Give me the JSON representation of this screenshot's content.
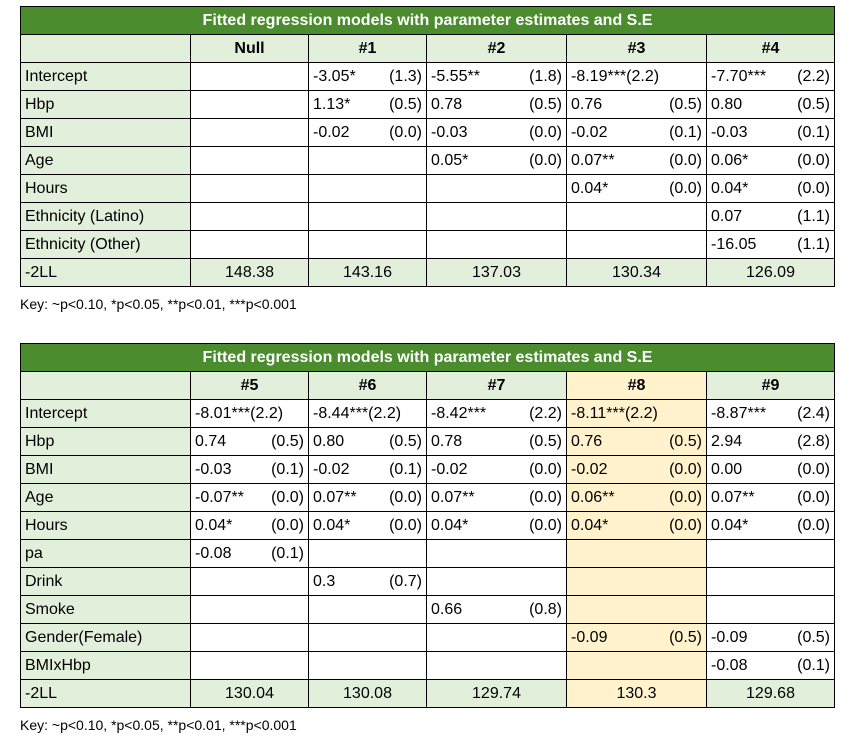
{
  "table1": {
    "title": "Fitted regression models with parameter estimates and S.E",
    "headers": [
      "",
      "Null",
      "#1",
      "#2",
      "#3",
      "#4"
    ],
    "rows": [
      {
        "label": "Intercept",
        "cells": [
          [
            "",
            ""
          ],
          [
            "-3.05*",
            "(1.3)"
          ],
          [
            "-5.55**",
            "(1.8)"
          ],
          [
            "-8.19***(2.2)",
            ""
          ],
          [
            "-7.70***",
            "(2.2)"
          ]
        ]
      },
      {
        "label": "Hbp",
        "cells": [
          [
            "",
            ""
          ],
          [
            "1.13*",
            "(0.5)"
          ],
          [
            "0.78",
            "(0.5)"
          ],
          [
            "0.76",
            "(0.5)"
          ],
          [
            "0.80",
            "(0.5)"
          ]
        ]
      },
      {
        "label": "BMI",
        "cells": [
          [
            "",
            ""
          ],
          [
            "-0.02",
            "(0.0)"
          ],
          [
            "-0.03",
            "(0.0)"
          ],
          [
            "-0.02",
            "(0.1)"
          ],
          [
            "-0.03",
            "(0.1)"
          ]
        ]
      },
      {
        "label": "Age",
        "cells": [
          [
            "",
            ""
          ],
          [
            "",
            ""
          ],
          [
            "0.05*",
            "(0.0)"
          ],
          [
            "0.07**",
            "(0.0)"
          ],
          [
            "0.06*",
            "(0.0)"
          ]
        ]
      },
      {
        "label": "Hours",
        "cells": [
          [
            "",
            ""
          ],
          [
            "",
            ""
          ],
          [
            "",
            ""
          ],
          [
            "0.04*",
            "(0.0)"
          ],
          [
            "0.04*",
            "(0.0)"
          ]
        ]
      },
      {
        "label": "Ethnicity (Latino)",
        "cells": [
          [
            "",
            ""
          ],
          [
            "",
            ""
          ],
          [
            "",
            ""
          ],
          [
            "",
            ""
          ],
          [
            "0.07",
            "(1.1)"
          ]
        ]
      },
      {
        "label": "Ethnicity (Other)",
        "cells": [
          [
            "",
            ""
          ],
          [
            "",
            ""
          ],
          [
            "",
            ""
          ],
          [
            "",
            ""
          ],
          [
            "-16.05",
            "(1.1)"
          ]
        ]
      }
    ],
    "total": {
      "label": "-2LL",
      "values": [
        "148.38",
        "143.16",
        "137.03",
        "130.34",
        "126.09"
      ]
    },
    "key": "Key: ~p<0.10, *p<0.05, **p<0.01, ***p<0.001"
  },
  "table2": {
    "title": "Fitted regression models with parameter estimates and S.E",
    "headers": [
      "",
      "#5",
      "#6",
      "#7",
      "#8",
      "#9"
    ],
    "highlight_color": "#fff2cc",
    "rows": [
      {
        "label": "Intercept",
        "cells": [
          [
            "-8.01***(2.2)",
            ""
          ],
          [
            "-8.44***(2.2)",
            ""
          ],
          [
            "-8.42***",
            "(2.2)"
          ],
          [
            "-8.11***(2.2)",
            ""
          ],
          [
            "-8.87***",
            "(2.4)"
          ]
        ]
      },
      {
        "label": "Hbp",
        "cells": [
          [
            "0.74",
            "(0.5)"
          ],
          [
            "0.80",
            "(0.5)"
          ],
          [
            "0.78",
            "(0.5)"
          ],
          [
            "0.76",
            "(0.5)"
          ],
          [
            "2.94",
            "(2.8)"
          ]
        ]
      },
      {
        "label": "BMI",
        "cells": [
          [
            "-0.03",
            "(0.1)"
          ],
          [
            "-0.02",
            "(0.1)"
          ],
          [
            "-0.02",
            "(0.0)"
          ],
          [
            "-0.02",
            "(0.0)"
          ],
          [
            "0.00",
            "(0.0)"
          ]
        ]
      },
      {
        "label": "Age",
        "cells": [
          [
            "-0.07**",
            "(0.0)"
          ],
          [
            "0.07**",
            "(0.0)"
          ],
          [
            "0.07**",
            "(0.0)"
          ],
          [
            "0.06**",
            "(0.0)"
          ],
          [
            "0.07**",
            "(0.0)"
          ]
        ]
      },
      {
        "label": "Hours",
        "cells": [
          [
            "0.04*",
            "(0.0)"
          ],
          [
            "0.04*",
            "(0.0)"
          ],
          [
            "0.04*",
            "(0.0)"
          ],
          [
            "0.04*",
            "(0.0)"
          ],
          [
            "0.04*",
            "(0.0)"
          ]
        ]
      },
      {
        "label": "pa",
        "cells": [
          [
            "-0.08",
            "(0.1)"
          ],
          [
            "",
            ""
          ],
          [
            "",
            ""
          ],
          [
            "",
            ""
          ],
          [
            "",
            ""
          ]
        ]
      },
      {
        "label": "Drink",
        "cells": [
          [
            "",
            ""
          ],
          [
            "0.3",
            "(0.7)"
          ],
          [
            "",
            ""
          ],
          [
            "",
            ""
          ],
          [
            "",
            ""
          ]
        ]
      },
      {
        "label": "Smoke",
        "cells": [
          [
            "",
            ""
          ],
          [
            "",
            ""
          ],
          [
            "0.66",
            "(0.8)"
          ],
          [
            "",
            ""
          ],
          [
            "",
            ""
          ]
        ]
      },
      {
        "label": "Gender(Female)",
        "cells": [
          [
            "",
            ""
          ],
          [
            "",
            ""
          ],
          [
            "",
            ""
          ],
          [
            "-0.09",
            "(0.5)"
          ],
          [
            "-0.09",
            "(0.5)"
          ]
        ]
      },
      {
        "label": "BMIxHbp",
        "cells": [
          [
            "",
            ""
          ],
          [
            "",
            ""
          ],
          [
            "",
            ""
          ],
          [
            "",
            ""
          ],
          [
            "-0.08",
            "(0.1)"
          ]
        ]
      }
    ],
    "total": {
      "label": "-2LL",
      "values": [
        "130.04",
        "130.08",
        "129.74",
        "130.3",
        "129.68"
      ]
    },
    "key": "Key: ~p<0.10, *p<0.05, **p<0.01, ***p<0.001"
  }
}
